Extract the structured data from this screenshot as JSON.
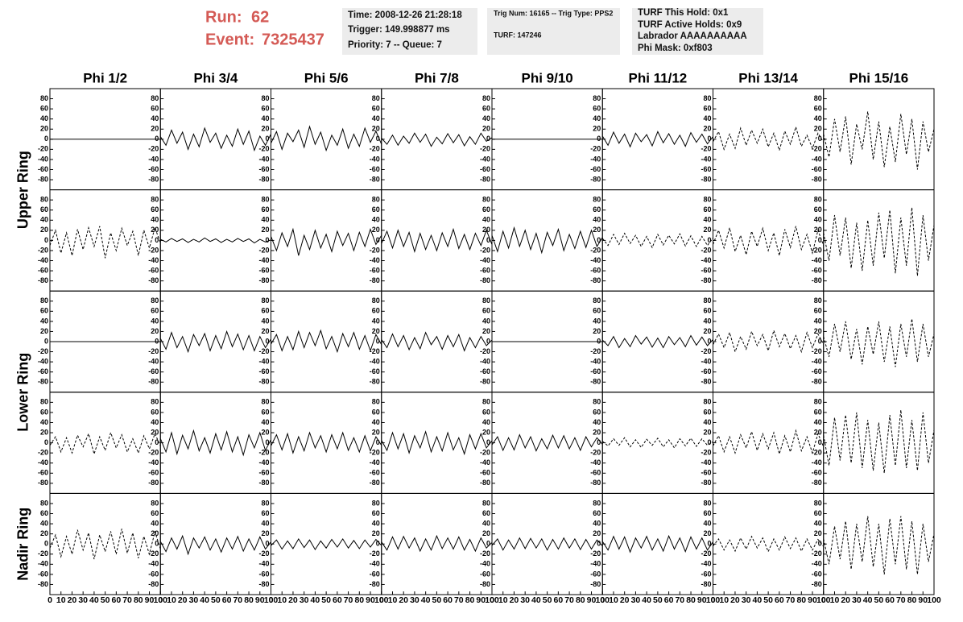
{
  "header": {
    "run_label": "Run:",
    "run": "62",
    "event_label": "Event:",
    "event": "7325437",
    "box1": [
      "Time: 2008-12-26 21:28:18",
      "Trigger: 149.998877 ms",
      "Priority: 7 -- Queue: 7"
    ],
    "box2": [
      "Trig Num: 16165 -- Trig Type: PPS2",
      "TURF: 147246"
    ],
    "box3": [
      "TURF This Hold: 0x1",
      "TURF Active Holds: 0x9",
      "Labrador AAAAAAAAAA",
      "Phi Mask: 0xf803"
    ]
  },
  "chart_data": {
    "type": "line",
    "color": "#000000",
    "columns": [
      "Phi 1/2",
      "Phi 3/4",
      "Phi 5/6",
      "Phi 7/8",
      "Phi 9/10",
      "Phi 11/12",
      "Phi 13/14",
      "Phi 15/16"
    ],
    "rows": [
      "Upper Ring",
      "Lower Ring",
      "Nadir Ring"
    ],
    "x": [
      0,
      5,
      10,
      15,
      20,
      25,
      30,
      35,
      40,
      45,
      50,
      55,
      60,
      65,
      70,
      75,
      80,
      85,
      90,
      95,
      100
    ],
    "xlim": [
      0,
      100
    ],
    "xticks": [
      0,
      10,
      20,
      30,
      40,
      50,
      60,
      70,
      80,
      90,
      100
    ],
    "ylim": [
      -100,
      100
    ],
    "yticks": [
      -80,
      -60,
      -40,
      -20,
      0,
      20,
      40,
      60,
      80
    ],
    "panels": [
      [
        {
          "values": [
            0,
            0,
            0,
            0,
            0,
            0,
            0,
            0,
            0,
            0,
            0,
            0,
            0,
            0,
            0,
            0,
            0,
            0,
            0,
            0,
            0
          ]
        },
        {
          "values": [
            5,
            -12,
            18,
            -8,
            14,
            -20,
            10,
            -15,
            22,
            -6,
            12,
            -18,
            8,
            -14,
            20,
            -10,
            16,
            -22,
            6,
            -12,
            10
          ]
        },
        {
          "values": [
            -8,
            15,
            -20,
            12,
            -5,
            18,
            -16,
            25,
            -10,
            14,
            -22,
            8,
            -12,
            20,
            -18,
            10,
            -14,
            22,
            -6,
            16,
            -10
          ]
        },
        {
          "values": [
            2,
            -10,
            8,
            -12,
            6,
            -8,
            12,
            -6,
            10,
            -14,
            4,
            -9,
            11,
            -7,
            9,
            -13,
            5,
            -10,
            12,
            -4,
            3
          ]
        },
        {
          "values": [
            0,
            0,
            0,
            0,
            0,
            0,
            0,
            0,
            0,
            0,
            0,
            0,
            0,
            0,
            0,
            0,
            0,
            0,
            0,
            0,
            0
          ]
        },
        {
          "values": [
            6,
            -12,
            14,
            -8,
            10,
            -15,
            12,
            -5,
            9,
            -13,
            15,
            -7,
            11,
            -10,
            8,
            -14,
            13,
            -6,
            10,
            -9,
            5
          ]
        },
        {
          "values": [
            -5,
            15,
            -20,
            10,
            -18,
            22,
            -12,
            18,
            -8,
            20,
            -15,
            12,
            -22,
            16,
            -10,
            24,
            -14,
            8,
            -18,
            12,
            -6
          ],
          "dashed": true
        },
        {
          "values": [
            10,
            -35,
            40,
            -25,
            45,
            -50,
            30,
            -20,
            55,
            -40,
            35,
            -55,
            25,
            -45,
            50,
            -30,
            40,
            -60,
            35,
            -25,
            20
          ],
          "dashed": true
        }
      ],
      [
        {
          "values": [
            -10,
            20,
            -25,
            15,
            -30,
            22,
            -18,
            25,
            -12,
            28,
            -35,
            15,
            -20,
            24,
            -10,
            18,
            -30,
            20,
            -15,
            25,
            -5
          ],
          "dashed": true
        },
        {
          "values": [
            2,
            -3,
            4,
            -2,
            3,
            -4,
            2,
            -3,
            5,
            -2,
            3,
            -4,
            2,
            -3,
            4,
            -2,
            3,
            -5,
            2,
            -3,
            1
          ]
        },
        {
          "values": [
            8,
            -20,
            15,
            -12,
            22,
            -30,
            10,
            -18,
            20,
            -15,
            12,
            -22,
            18,
            -10,
            14,
            -20,
            16,
            -12,
            22,
            -8,
            10
          ]
        },
        {
          "values": [
            -6,
            18,
            -15,
            20,
            -12,
            16,
            -22,
            14,
            -18,
            10,
            -20,
            15,
            -12,
            22,
            -16,
            12,
            -18,
            14,
            -10,
            20,
            -8
          ]
        },
        {
          "values": [
            10,
            -22,
            18,
            -15,
            25,
            -12,
            20,
            -18,
            14,
            -24,
            16,
            -10,
            22,
            -20,
            12,
            -16,
            18,
            -14,
            20,
            -12,
            6
          ]
        },
        {
          "values": [
            4,
            -10,
            12,
            -8,
            14,
            -6,
            10,
            -12,
            8,
            -14,
            12,
            -9,
            10,
            -7,
            13,
            -11,
            9,
            -12,
            8,
            -10,
            5
          ],
          "dashed": true
        },
        {
          "values": [
            -8,
            20,
            -15,
            25,
            -22,
            10,
            -28,
            18,
            -12,
            24,
            -20,
            15,
            -30,
            22,
            -14,
            28,
            -18,
            12,
            -25,
            20,
            -10
          ],
          "dashed": true
        },
        {
          "values": [
            15,
            -40,
            50,
            -30,
            45,
            -55,
            35,
            -60,
            40,
            -50,
            55,
            -35,
            60,
            -65,
            45,
            -50,
            65,
            -70,
            50,
            -40,
            30
          ],
          "dashed": true
        }
      ],
      [
        {
          "values": [
            0,
            0,
            0,
            0,
            0,
            0,
            0,
            0,
            0,
            0,
            0,
            0,
            0,
            0,
            0,
            0,
            0,
            0,
            0,
            0,
            0
          ]
        },
        {
          "values": [
            6,
            -15,
            18,
            -12,
            10,
            -20,
            14,
            -8,
            16,
            -18,
            12,
            -14,
            20,
            -10,
            15,
            -16,
            12,
            -18,
            10,
            -12,
            5
          ]
        },
        {
          "values": [
            -5,
            14,
            -18,
            10,
            -16,
            20,
            -12,
            18,
            -8,
            22,
            -14,
            10,
            -20,
            16,
            -10,
            18,
            -15,
            12,
            -18,
            14,
            -6
          ]
        },
        {
          "values": [
            4,
            -12,
            15,
            -10,
            12,
            -16,
            8,
            -14,
            18,
            -6,
            10,
            -15,
            12,
            -10,
            14,
            -18,
            8,
            -12,
            10,
            -8,
            3
          ]
        },
        {
          "values": [
            0,
            0,
            0,
            0,
            0,
            0,
            0,
            0,
            0,
            0,
            0,
            0,
            0,
            0,
            0,
            0,
            0,
            0,
            0,
            0,
            0
          ]
        },
        {
          "values": [
            3,
            -8,
            10,
            -12,
            6,
            -10,
            12,
            -5,
            9,
            -11,
            7,
            -12,
            10,
            -6,
            8,
            -10,
            12,
            -7,
            9,
            -8,
            4
          ]
        },
        {
          "values": [
            -6,
            15,
            -12,
            18,
            -20,
            10,
            -15,
            20,
            -8,
            14,
            -18,
            22,
            -10,
            16,
            -14,
            12,
            -20,
            18,
            -12,
            15,
            -5
          ],
          "dashed": true
        },
        {
          "values": [
            10,
            -30,
            35,
            -20,
            40,
            -35,
            25,
            -45,
            30,
            -25,
            40,
            -40,
            30,
            -50,
            35,
            -30,
            45,
            -40,
            35,
            -30,
            15
          ],
          "dashed": true
        }
      ],
      [
        {
          "values": [
            -5,
            12,
            -18,
            10,
            -20,
            15,
            -8,
            18,
            -22,
            12,
            -15,
            20,
            -10,
            16,
            -18,
            8,
            -20,
            14,
            -12,
            18,
            -6
          ],
          "dashed": true
        },
        {
          "values": [
            8,
            -18,
            20,
            -22,
            15,
            -12,
            24,
            -16,
            10,
            -20,
            18,
            -14,
            22,
            -18,
            12,
            -24,
            16,
            -10,
            20,
            -15,
            6
          ]
        },
        {
          "values": [
            -6,
            16,
            -14,
            18,
            -20,
            12,
            -16,
            20,
            -10,
            14,
            -18,
            16,
            -12,
            20,
            -15,
            10,
            -18,
            14,
            -16,
            12,
            -5
          ]
        },
        {
          "values": [
            5,
            -15,
            20,
            -12,
            18,
            -20,
            14,
            -10,
            22,
            -18,
            12,
            -16,
            20,
            -14,
            10,
            -22,
            16,
            -12,
            18,
            -10,
            4
          ]
        },
        {
          "values": [
            -4,
            12,
            -15,
            10,
            -14,
            16,
            -10,
            12,
            -16,
            8,
            -12,
            15,
            -10,
            14,
            -12,
            10,
            -15,
            12,
            -8,
            10,
            -3
          ]
        },
        {
          "values": [
            3,
            -6,
            8,
            -5,
            10,
            -8,
            6,
            -9,
            7,
            -5,
            9,
            -8,
            6,
            -10,
            8,
            -6,
            9,
            -7,
            8,
            -5,
            2
          ],
          "dashed": true
        },
        {
          "values": [
            -6,
            14,
            -18,
            12,
            -20,
            16,
            -10,
            22,
            -15,
            18,
            -12,
            20,
            -22,
            14,
            -18,
            24,
            -16,
            12,
            -20,
            18,
            -8
          ],
          "dashed": true
        },
        {
          "values": [
            15,
            -45,
            50,
            -35,
            55,
            -40,
            60,
            -50,
            45,
            -55,
            40,
            -60,
            55,
            -45,
            65,
            -50,
            45,
            -55,
            60,
            -40,
            25
          ],
          "dashed": true
        }
      ],
      [
        {
          "values": [
            -8,
            18,
            -25,
            15,
            -20,
            28,
            -12,
            22,
            -30,
            18,
            -15,
            25,
            -20,
            30,
            -18,
            22,
            -28,
            15,
            -20,
            24,
            -10
          ],
          "dashed": true
        },
        {
          "values": [
            5,
            -15,
            12,
            -10,
            16,
            -20,
            12,
            -8,
            14,
            -12,
            10,
            -16,
            12,
            -10,
            15,
            -14,
            10,
            -12,
            14,
            -10,
            4
          ]
        },
        {
          "values": [
            -3,
            8,
            -10,
            6,
            -9,
            10,
            -7,
            8,
            -11,
            6,
            -8,
            9,
            -6,
            10,
            -8,
            7,
            -9,
            8,
            -6,
            9,
            -3
          ]
        },
        {
          "values": [
            4,
            -12,
            14,
            -10,
            15,
            -8,
            12,
            -14,
            10,
            -12,
            16,
            -9,
            12,
            -10,
            14,
            -12,
            9,
            -14,
            12,
            -8,
            3
          ]
        },
        {
          "values": [
            -3,
            10,
            -12,
            8,
            -10,
            12,
            -9,
            11,
            -8,
            10,
            -12,
            9,
            -10,
            12,
            -8,
            10,
            -11,
            9,
            -10,
            8,
            -4
          ]
        },
        {
          "values": [
            5,
            -12,
            15,
            -10,
            14,
            -16,
            12,
            -8,
            15,
            -12,
            10,
            -14,
            16,
            -10,
            12,
            -15,
            14,
            -10,
            12,
            -12,
            4
          ]
        },
        {
          "values": [
            -4,
            10,
            -12,
            8,
            -14,
            12,
            -10,
            15,
            -8,
            12,
            -15,
            10,
            -12,
            14,
            -9,
            12,
            -14,
            10,
            -12,
            9,
            -5
          ],
          "dashed": true
        },
        {
          "values": [
            10,
            -40,
            35,
            -30,
            45,
            -50,
            40,
            -35,
            55,
            -45,
            40,
            -60,
            50,
            -40,
            55,
            -50,
            45,
            -60,
            40,
            -35,
            20
          ],
          "dashed": true
        }
      ]
    ]
  }
}
